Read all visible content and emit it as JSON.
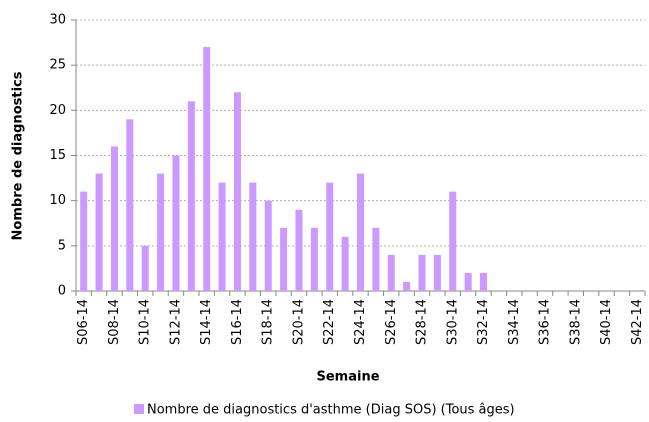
{
  "chart_data": {
    "type": "bar",
    "y_label": "Nombre de diagnostics",
    "x_label": "Semaine",
    "categories": [
      "S06-14",
      null,
      "S08-14",
      null,
      "S10-14",
      null,
      "S12-14",
      null,
      "S14-14",
      null,
      "S16-14",
      null,
      "S18-14",
      null,
      "S20-14",
      null,
      "S22-14",
      null,
      "S24-14",
      null,
      "S26-14",
      null,
      "S28-14",
      null,
      "S30-14",
      null,
      "S32-14",
      null,
      "S34-14",
      null,
      "S36-14",
      null,
      "S38-14",
      null,
      "S40-14",
      null,
      "S42-14"
    ],
    "series": [
      {
        "name": "Nombre de diagnostics d'asthme (Diag SOS) (Tous âges)",
        "color": "#cc99ff",
        "values": [
          11,
          13,
          16,
          19,
          5,
          13,
          15,
          21,
          27,
          12,
          22,
          12,
          10,
          7,
          9,
          7,
          12,
          6,
          13,
          7,
          4,
          1,
          4,
          4,
          11,
          2,
          2,
          0,
          0,
          0,
          0,
          0,
          0,
          0,
          0,
          0,
          0
        ]
      }
    ],
    "ylim": [
      0,
      30
    ],
    "yticks": [
      0,
      5,
      10,
      15,
      20,
      25,
      30
    ],
    "grid": true,
    "legend": "bottom"
  }
}
